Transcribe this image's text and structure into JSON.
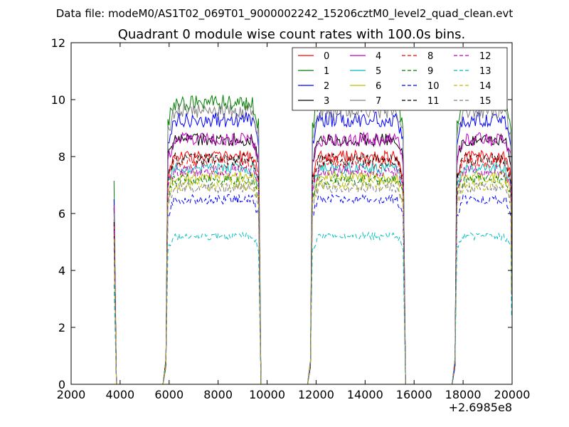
{
  "figure": {
    "suptitle": "Data file: modeM0/AS1T02_069T01_9000002242_15206cztM0_level2_quad_clean.evt"
  },
  "chart_data": {
    "type": "line",
    "title": "Quadrant 0 module wise count rates with 100.0s bins.",
    "xlabel": "",
    "ylabel": "",
    "xlim": [
      2000,
      20000
    ],
    "ylim": [
      0,
      12
    ],
    "x_offset_label": "+2.6985e8",
    "xticks": [
      2000,
      4000,
      6000,
      8000,
      10000,
      12000,
      14000,
      16000,
      18000,
      20000
    ],
    "yticks": [
      0,
      2,
      4,
      6,
      8,
      10,
      12
    ],
    "grid": false,
    "legend": {
      "placement": "top-right",
      "columns": 4
    },
    "segments": [
      {
        "start": 3750,
        "end": 3850
      },
      {
        "start": 5950,
        "end": 9650
      },
      {
        "start": 11850,
        "end": 15550
      },
      {
        "start": 17750,
        "end": 19950
      }
    ],
    "series": [
      {
        "name": "0",
        "color": "#ff0000",
        "dash": "solid",
        "level": 8.0,
        "spike": 5.8
      },
      {
        "name": "1",
        "color": "#008000",
        "dash": "solid",
        "level": 9.9,
        "spike": 7.15
      },
      {
        "name": "2",
        "color": "#0000ff",
        "dash": "solid",
        "level": 9.3,
        "spike": 6.5
      },
      {
        "name": "3",
        "color": "#000000",
        "dash": "solid",
        "level": 8.6,
        "spike": 6.2
      },
      {
        "name": "4",
        "color": "#bf00bf",
        "dash": "solid",
        "level": 8.6,
        "spike": 6.3
      },
      {
        "name": "5",
        "color": "#00bfbf",
        "dash": "solid",
        "level": 7.6,
        "spike": 5.5
      },
      {
        "name": "6",
        "color": "#bfbf00",
        "dash": "solid",
        "level": 7.3,
        "spike": 5.3
      },
      {
        "name": "7",
        "color": "#808080",
        "dash": "solid",
        "level": 9.6,
        "spike": 6.0
      },
      {
        "name": "8",
        "color": "#ff0000",
        "dash": "dashed",
        "level": 7.8,
        "spike": 5.6
      },
      {
        "name": "9",
        "color": "#008000",
        "dash": "dashed",
        "level": 7.2,
        "spike": 5.2
      },
      {
        "name": "10",
        "color": "#0000ff",
        "dash": "dashed",
        "level": 6.5,
        "spike": 4.8
      },
      {
        "name": "11",
        "color": "#000000",
        "dash": "dashed",
        "level": 7.9,
        "spike": 5.7
      },
      {
        "name": "12",
        "color": "#bf00bf",
        "dash": "dashed",
        "level": 7.5,
        "spike": 5.4
      },
      {
        "name": "13",
        "color": "#00bfbf",
        "dash": "dashed",
        "level": 5.2,
        "spike": 3.5
      },
      {
        "name": "14",
        "color": "#bfbf00",
        "dash": "dashed",
        "level": 7.0,
        "spike": 5.1
      },
      {
        "name": "15",
        "color": "#808080",
        "dash": "dashed",
        "level": 6.9,
        "spike": 5.0
      }
    ]
  }
}
